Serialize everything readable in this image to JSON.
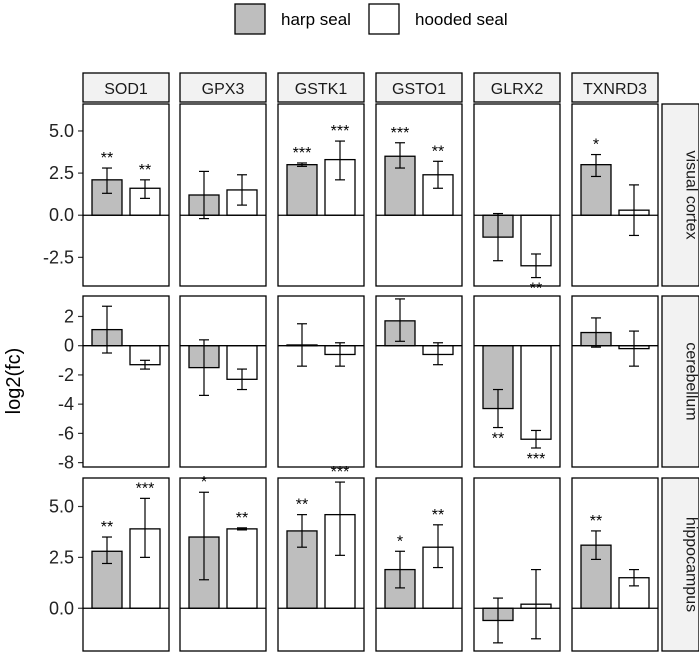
{
  "chart_data": {
    "type": "bar",
    "title": "",
    "ylabel": "log2(fc)",
    "xlabel": "",
    "legend": {
      "position": "top",
      "entries": [
        {
          "name": "harp seal",
          "color": "#bebebe"
        },
        {
          "name": "hooded seal",
          "color": "#ffffff"
        }
      ]
    },
    "genes": [
      "SOD1",
      "GPX3",
      "GSTK1",
      "GSTO1",
      "GLRX2",
      "TXNRD3"
    ],
    "series_names": [
      "harp seal",
      "hooded seal"
    ],
    "grid": false,
    "panels": [
      {
        "region": "visual cortex",
        "ylim": [
          -4.2,
          6.6
        ],
        "yticks": [
          5.0,
          2.5,
          0.0,
          -2.5
        ],
        "ytick_labels": [
          "5.0",
          "2.5",
          "0.0",
          "-2.5"
        ],
        "bars": [
          [
            {
              "value": 2.1,
              "low": 1.3,
              "high": 2.8,
              "sig": "**"
            },
            {
              "value": 1.6,
              "low": 1.0,
              "high": 2.1,
              "sig": "**"
            }
          ],
          [
            {
              "value": 1.2,
              "low": -0.2,
              "high": 2.6,
              "sig": ""
            },
            {
              "value": 1.5,
              "low": 0.6,
              "high": 2.4,
              "sig": ""
            }
          ],
          [
            {
              "value": 3.0,
              "low": 2.9,
              "high": 3.1,
              "sig": "***"
            },
            {
              "value": 3.3,
              "low": 2.1,
              "high": 4.4,
              "sig": "***"
            }
          ],
          [
            {
              "value": 3.5,
              "low": 2.8,
              "high": 4.3,
              "sig": "***"
            },
            {
              "value": 2.4,
              "low": 1.6,
              "high": 3.2,
              "sig": "**"
            }
          ],
          [
            {
              "value": -1.3,
              "low": -2.7,
              "high": 0.1,
              "sig": ""
            },
            {
              "value": -3.0,
              "low": -3.7,
              "high": -2.3,
              "sig": "**"
            }
          ],
          [
            {
              "value": 3.0,
              "low": 2.3,
              "high": 3.6,
              "sig": "*"
            },
            {
              "value": 0.3,
              "low": -1.2,
              "high": 1.8,
              "sig": ""
            }
          ]
        ]
      },
      {
        "region": "cerebellum",
        "ylim": [
          -8.3,
          3.4
        ],
        "yticks": [
          2,
          0,
          -2,
          -4,
          -6,
          -8
        ],
        "ytick_labels": [
          "2",
          "0",
          "-2",
          "-4",
          "-6",
          "-8"
        ],
        "bars": [
          [
            {
              "value": 1.1,
              "low": -0.5,
              "high": 2.7,
              "sig": ""
            },
            {
              "value": -1.3,
              "low": -1.6,
              "high": -1.0,
              "sig": ""
            }
          ],
          [
            {
              "value": -1.5,
              "low": -3.4,
              "high": 0.4,
              "sig": ""
            },
            {
              "value": -2.3,
              "low": -3.0,
              "high": -1.6,
              "sig": ""
            }
          ],
          [
            {
              "value": 0.05,
              "low": -1.4,
              "high": 1.5,
              "sig": ""
            },
            {
              "value": -0.6,
              "low": -1.4,
              "high": 0.2,
              "sig": ""
            }
          ],
          [
            {
              "value": 1.7,
              "low": 0.3,
              "high": 3.2,
              "sig": ""
            },
            {
              "value": -0.6,
              "low": -1.3,
              "high": 0.2,
              "sig": ""
            }
          ],
          [
            {
              "value": -4.3,
              "low": -5.6,
              "high": -3.0,
              "sig": "**"
            },
            {
              "value": -6.4,
              "low": -7.0,
              "high": -5.8,
              "sig": "***"
            }
          ],
          [
            {
              "value": 0.9,
              "low": -0.1,
              "high": 1.9,
              "sig": ""
            },
            {
              "value": -0.2,
              "low": -1.4,
              "high": 1.0,
              "sig": ""
            }
          ]
        ]
      },
      {
        "region": "hippocampus",
        "ylim": [
          -2.1,
          6.4
        ],
        "yticks": [
          5.0,
          2.5,
          0.0
        ],
        "ytick_labels": [
          "5.0",
          "2.5",
          "0.0"
        ],
        "bars": [
          [
            {
              "value": 2.8,
              "low": 2.2,
              "high": 3.5,
              "sig": "**"
            },
            {
              "value": 3.9,
              "low": 2.5,
              "high": 5.4,
              "sig": "***"
            }
          ],
          [
            {
              "value": 3.5,
              "low": 1.4,
              "high": 5.7,
              "sig": "*"
            },
            {
              "value": 3.9,
              "low": 3.85,
              "high": 3.95,
              "sig": "**"
            }
          ],
          [
            {
              "value": 3.8,
              "low": 3.0,
              "high": 4.6,
              "sig": "**"
            },
            {
              "value": 4.6,
              "low": 2.6,
              "high": 6.2,
              "sig": "***"
            }
          ],
          [
            {
              "value": 1.9,
              "low": 1.0,
              "high": 2.8,
              "sig": "*"
            },
            {
              "value": 3.0,
              "low": 2.0,
              "high": 4.1,
              "sig": "**"
            }
          ],
          [
            {
              "value": -0.6,
              "low": -1.7,
              "high": 0.5,
              "sig": ""
            },
            {
              "value": 0.2,
              "low": -1.5,
              "high": 1.9,
              "sig": ""
            }
          ],
          [
            {
              "value": 3.1,
              "low": 2.4,
              "high": 3.8,
              "sig": "**"
            },
            {
              "value": 1.5,
              "low": 1.1,
              "high": 1.9,
              "sig": ""
            }
          ]
        ]
      }
    ]
  }
}
